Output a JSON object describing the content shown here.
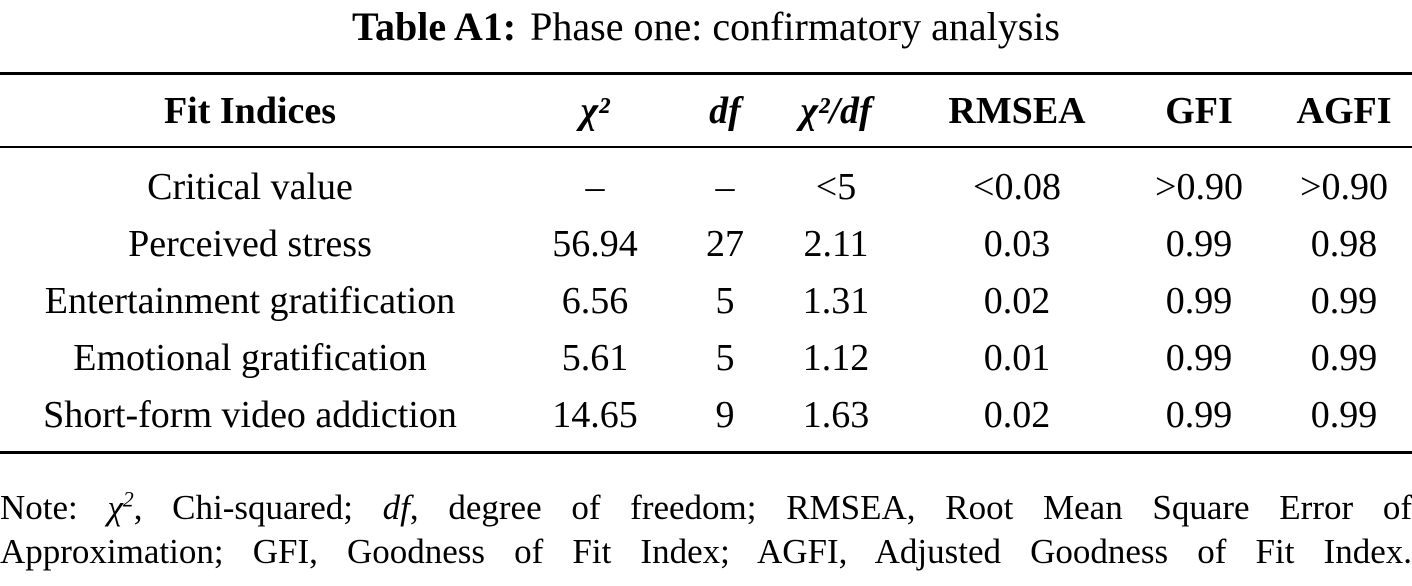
{
  "caption": {
    "label": "Table A1:",
    "text": "Phase one: confirmatory analysis"
  },
  "table": {
    "columns": [
      "Fit Indices",
      "χ²",
      "df",
      "χ²/df",
      "RMSEA",
      "GFI",
      "AGFI"
    ],
    "rows": [
      {
        "cells": [
          "Critical value",
          "–",
          "–",
          "<5",
          "<0.08",
          ">0.90",
          ">0.90"
        ]
      },
      {
        "cells": [
          "Perceived stress",
          "56.94",
          "27",
          "2.11",
          "0.03",
          "0.99",
          "0.98"
        ]
      },
      {
        "cells": [
          "Entertainment gratification",
          "6.56",
          "5",
          "1.31",
          "0.02",
          "0.99",
          "0.99"
        ]
      },
      {
        "cells": [
          "Emotional gratification",
          "5.61",
          "5",
          "1.12",
          "0.01",
          "0.99",
          "0.99"
        ]
      },
      {
        "cells": [
          "Short-form video addiction",
          "14.65",
          "9",
          "1.63",
          "0.02",
          "0.99",
          "0.99"
        ]
      }
    ]
  },
  "note": {
    "prefix": "Note: ",
    "chi_symbol": "χ",
    "chi_sup": "2",
    "seg1": ", Chi-squared; ",
    "df_symbol": "df",
    "seg2": ", degree of freedom; RMSEA, Root Mean Square Error of",
    "line2": "Approximation; GFI, Goodness of Fit Index; AGFI, Adjusted Goodness of Fit Index."
  },
  "colors": {
    "text": "#000000",
    "background": "#ffffff",
    "rule": "#000000"
  }
}
